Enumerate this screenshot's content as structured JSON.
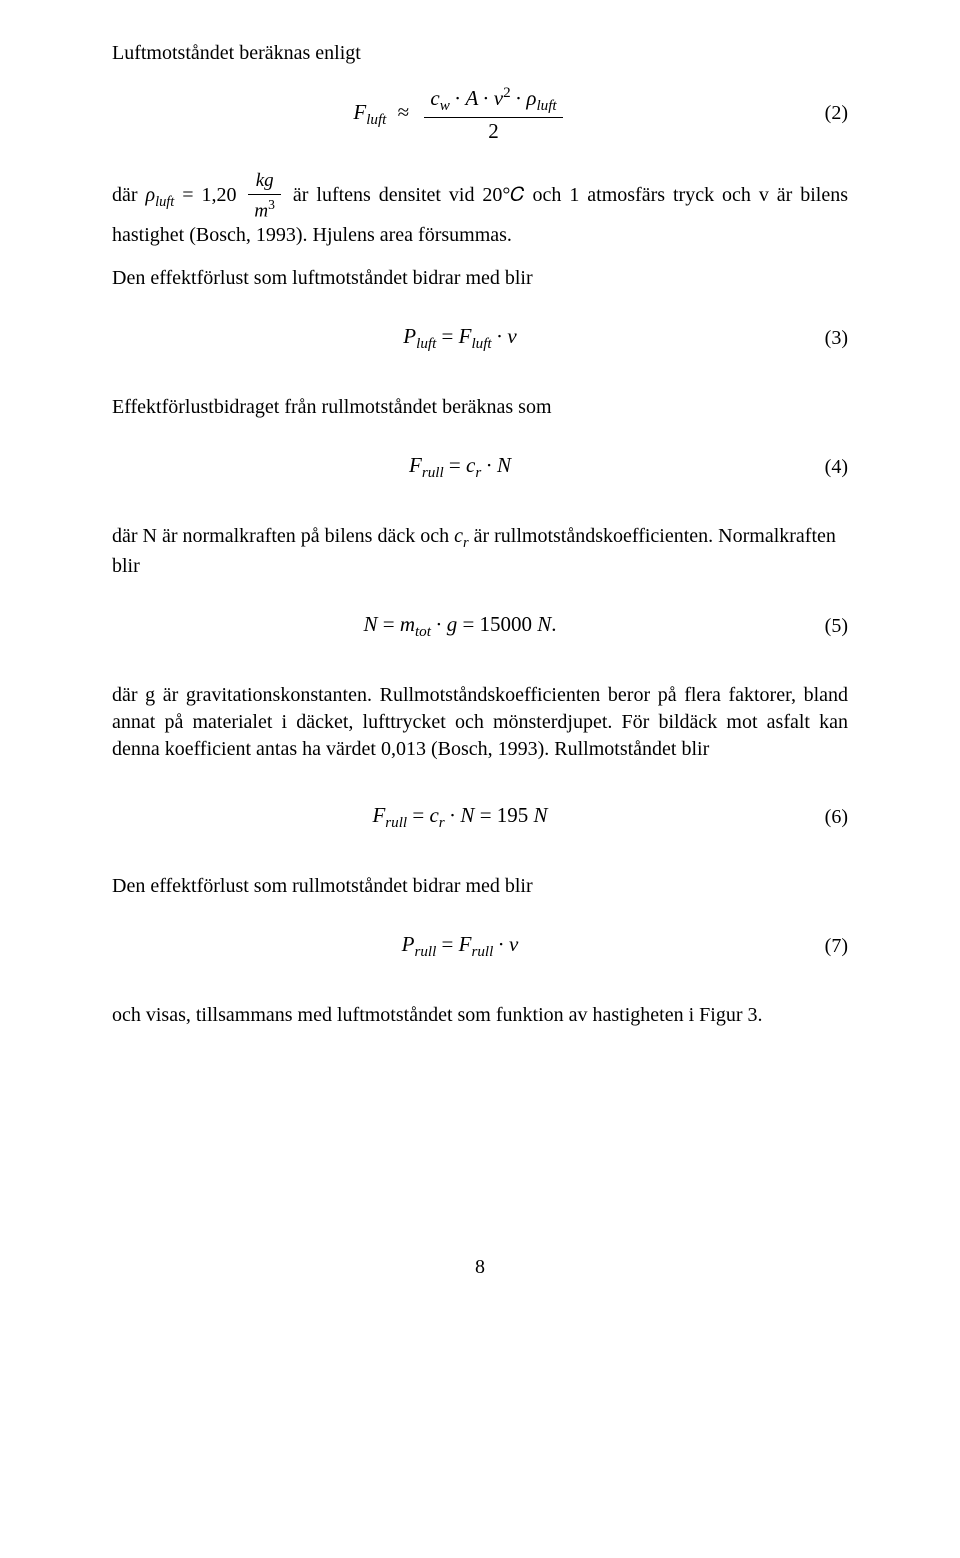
{
  "page": {
    "number": "8",
    "fontsize_body_pt": 12,
    "fontsize_eqnum_pt": 12,
    "font_family": "Times New Roman",
    "text_color": "#000000",
    "background_color": "#ffffff"
  },
  "p1": "Luftmotståndet beräknas enligt",
  "eq2": {
    "lhs_var": "F",
    "lhs_sub": "luft",
    "approx": "≈",
    "num_terms": {
      "cw_var": "c",
      "cw_sub": "w",
      "A": "A",
      "v": "v",
      "v_exp": "2",
      "rho": "ρ",
      "rho_sub": "luft"
    },
    "den": "2",
    "num": "(2)"
  },
  "p2": {
    "dar": "där  ",
    "rho_var": "ρ",
    "rho_sub": "luft",
    "eq": " = 1,20 ",
    "kg": "kg",
    "m3_m": "m",
    "m3_exp": "3",
    "rest": " är luftens densitet vid 20°𝐶 och 1 atmosfärs tryck och v är bilens hastighet (Bosch, 1993). Hjulens area försummas."
  },
  "p3": "Den effektförlust som luftmotståndet bidrar med blir",
  "eq3": {
    "P": "P",
    "P_sub": "luft",
    "eq": " = ",
    "F": "F",
    "F_sub": "luft",
    "dot": " ∙ ",
    "v": "v",
    "num": "(3)"
  },
  "p4": "Effektförlustbidraget från rullmotståndet beräknas som",
  "eq4": {
    "F": "F",
    "F_sub": "rull",
    "eq": " = ",
    "c": "c",
    "c_sub": "r",
    "dot": " ∙ ",
    "N": "N",
    "num": "(4)"
  },
  "p5": {
    "pre": "där N är normalkraften på bilens däck och ",
    "c": "c",
    "c_sub": "r",
    "post": " är rullmotståndskoefficienten. Normalkraften blir"
  },
  "eq5": {
    "N": "N",
    "eq": " = ",
    "m": "m",
    "m_sub": "tot",
    "dot": " ∙ ",
    "g": "g",
    "eq2": " = 15000 ",
    "unit_N": "N",
    "period": ".",
    "num": "(5)"
  },
  "p6": "där g är gravitationskonstanten. Rullmotståndskoefficienten beror på flera faktorer, bland annat på materialet i däcket, lufttrycket och mönsterdjupet. För bildäck mot asfalt kan denna koefficient antas ha värdet 0,013 (Bosch, 1993). Rullmotståndet blir",
  "eq6": {
    "F": "F",
    "F_sub": "rull",
    "eq": " = ",
    "c": "c",
    "c_sub": "r",
    "dot": " ∙ ",
    "N": "N",
    "eq2": " = 195 ",
    "unit_N": "N",
    "num": "(6)"
  },
  "p7": "Den effektförlust som rullmotståndet bidrar med blir",
  "eq7": {
    "P": "P",
    "P_sub": "rull",
    "eq": " = ",
    "F": "F",
    "F_sub": "rull",
    "dot": " ∙ ",
    "v": "v",
    "num": "(7)"
  },
  "p8": "och visas, tillsammans med luftmotståndet som funktion av hastigheten i Figur 3."
}
